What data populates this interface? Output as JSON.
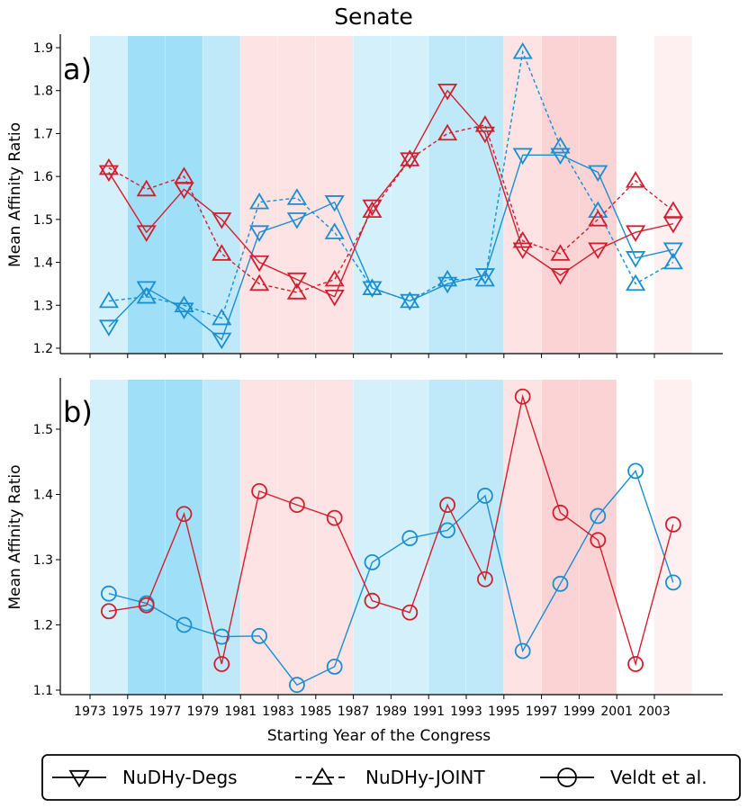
{
  "title": "Senate",
  "xlabel": "Starting Year of the Congress",
  "x_ticks": [
    1973,
    1975,
    1977,
    1979,
    1981,
    1983,
    1985,
    1987,
    1989,
    1991,
    1993,
    1995,
    1997,
    1999,
    2001,
    2003
  ],
  "colors": {
    "democrat_line": "#1a8fd0",
    "republican_line": "#d11f2f",
    "blue_light": "#d4f1fb",
    "blue_mid": "#bfe9f8",
    "blue_dark": "#9fe0f8",
    "red_light": "#fde3e4",
    "red_mid": "#fbd3d4",
    "red_faint": "#fef0f0"
  },
  "legend": [
    {
      "label": "NuDHy-Degs",
      "marker": "triangle-down",
      "dash": "solid"
    },
    {
      "label": "NuDHy-JOINT",
      "marker": "triangle-up",
      "dash": "dashed"
    },
    {
      "label": "Veldt et al.",
      "marker": "circle",
      "dash": "solid"
    }
  ],
  "chart_data": [
    {
      "panel": "a)",
      "type": "line",
      "ylabel": "Mean Affinity Ratio",
      "ylim": [
        1.19,
        1.93
      ],
      "yticks": [
        1.2,
        1.3,
        1.4,
        1.5,
        1.6,
        1.7,
        1.8,
        1.9
      ],
      "shading": [
        {
          "start": 1973,
          "end": 1975,
          "color": "blue_light"
        },
        {
          "start": 1975,
          "end": 1977,
          "color": "blue_dark"
        },
        {
          "start": 1977,
          "end": 1979,
          "color": "blue_dark"
        },
        {
          "start": 1979,
          "end": 1981,
          "color": "blue_mid"
        },
        {
          "start": 1981,
          "end": 1983,
          "color": "red_light"
        },
        {
          "start": 1983,
          "end": 1985,
          "color": "red_light"
        },
        {
          "start": 1985,
          "end": 1987,
          "color": "red_light"
        },
        {
          "start": 1987,
          "end": 1989,
          "color": "blue_light"
        },
        {
          "start": 1989,
          "end": 1991,
          "color": "blue_light"
        },
        {
          "start": 1991,
          "end": 1993,
          "color": "blue_mid"
        },
        {
          "start": 1993,
          "end": 1995,
          "color": "blue_mid"
        },
        {
          "start": 1995,
          "end": 1997,
          "color": "red_light"
        },
        {
          "start": 1997,
          "end": 1999,
          "color": "red_mid"
        },
        {
          "start": 1999,
          "end": 2001,
          "color": "red_mid"
        },
        {
          "start": 2003,
          "end": 2005,
          "color": "red_faint"
        }
      ],
      "x": [
        1974,
        1976,
        1978,
        1980,
        1982,
        1984,
        1986,
        1988,
        1990,
        1992,
        1994,
        1996,
        1998,
        2000,
        2002,
        2004
      ],
      "series": [
        {
          "name": "NuDHy-Degs (Democrat)",
          "color": "democrat_line",
          "marker": "triangle-down",
          "dash": "solid",
          "values": [
            1.25,
            1.34,
            1.29,
            1.22,
            1.47,
            1.5,
            1.54,
            1.34,
            1.31,
            1.35,
            1.37,
            1.65,
            1.65,
            1.61,
            1.41,
            1.43
          ]
        },
        {
          "name": "NuDHy-JOINT (Democrat)",
          "color": "democrat_line",
          "marker": "triangle-up",
          "dash": "dashed",
          "values": [
            1.31,
            1.32,
            1.3,
            1.27,
            1.54,
            1.55,
            1.47,
            1.34,
            1.31,
            1.36,
            1.36,
            1.89,
            1.67,
            1.52,
            1.35,
            1.4
          ]
        },
        {
          "name": "NuDHy-Degs (Republican)",
          "color": "republican_line",
          "marker": "triangle-down",
          "dash": "solid",
          "values": [
            1.61,
            1.47,
            1.57,
            1.5,
            1.4,
            1.36,
            1.32,
            1.53,
            1.64,
            1.8,
            1.7,
            1.43,
            1.37,
            1.43,
            1.47,
            1.49
          ]
        },
        {
          "name": "NuDHy-JOINT (Republican)",
          "color": "republican_line",
          "marker": "triangle-up",
          "dash": "dashed",
          "values": [
            1.62,
            1.57,
            1.6,
            1.42,
            1.35,
            1.33,
            1.36,
            1.52,
            1.64,
            1.7,
            1.72,
            1.45,
            1.42,
            1.5,
            1.59,
            1.52
          ]
        }
      ]
    },
    {
      "panel": "b)",
      "type": "line",
      "ylabel": "Mean Affinity Ratio",
      "ylim": [
        1.09,
        1.57
      ],
      "yticks": [
        1.1,
        1.2,
        1.3,
        1.4,
        1.5
      ],
      "shading": [
        {
          "start": 1973,
          "end": 1975,
          "color": "blue_light"
        },
        {
          "start": 1975,
          "end": 1977,
          "color": "blue_dark"
        },
        {
          "start": 1977,
          "end": 1979,
          "color": "blue_dark"
        },
        {
          "start": 1979,
          "end": 1981,
          "color": "blue_mid"
        },
        {
          "start": 1981,
          "end": 1983,
          "color": "red_light"
        },
        {
          "start": 1983,
          "end": 1985,
          "color": "red_light"
        },
        {
          "start": 1985,
          "end": 1987,
          "color": "red_light"
        },
        {
          "start": 1987,
          "end": 1989,
          "color": "blue_light"
        },
        {
          "start": 1989,
          "end": 1991,
          "color": "blue_light"
        },
        {
          "start": 1991,
          "end": 1993,
          "color": "blue_mid"
        },
        {
          "start": 1993,
          "end": 1995,
          "color": "blue_mid"
        },
        {
          "start": 1995,
          "end": 1997,
          "color": "red_light"
        },
        {
          "start": 1997,
          "end": 1999,
          "color": "red_mid"
        },
        {
          "start": 1999,
          "end": 2001,
          "color": "red_mid"
        },
        {
          "start": 2003,
          "end": 2005,
          "color": "red_faint"
        }
      ],
      "x": [
        1974,
        1976,
        1978,
        1980,
        1982,
        1984,
        1986,
        1988,
        1990,
        1992,
        1994,
        1996,
        1998,
        2000,
        2002,
        2004
      ],
      "series": [
        {
          "name": "Veldt et al. (Democrat)",
          "color": "democrat_line",
          "marker": "circle",
          "dash": "solid",
          "values": [
            1.248,
            1.233,
            1.2,
            1.182,
            1.183,
            1.108,
            1.136,
            1.296,
            1.333,
            1.345,
            1.398,
            1.16,
            1.263,
            1.367,
            1.436,
            1.265
          ]
        },
        {
          "name": "Veldt et al. (Republican)",
          "color": "republican_line",
          "marker": "circle",
          "dash": "solid",
          "values": [
            1.221,
            1.23,
            1.37,
            1.14,
            1.405,
            1.384,
            1.364,
            1.237,
            1.219,
            1.384,
            1.27,
            1.55,
            1.372,
            1.33,
            1.14,
            1.354
          ]
        }
      ]
    }
  ]
}
